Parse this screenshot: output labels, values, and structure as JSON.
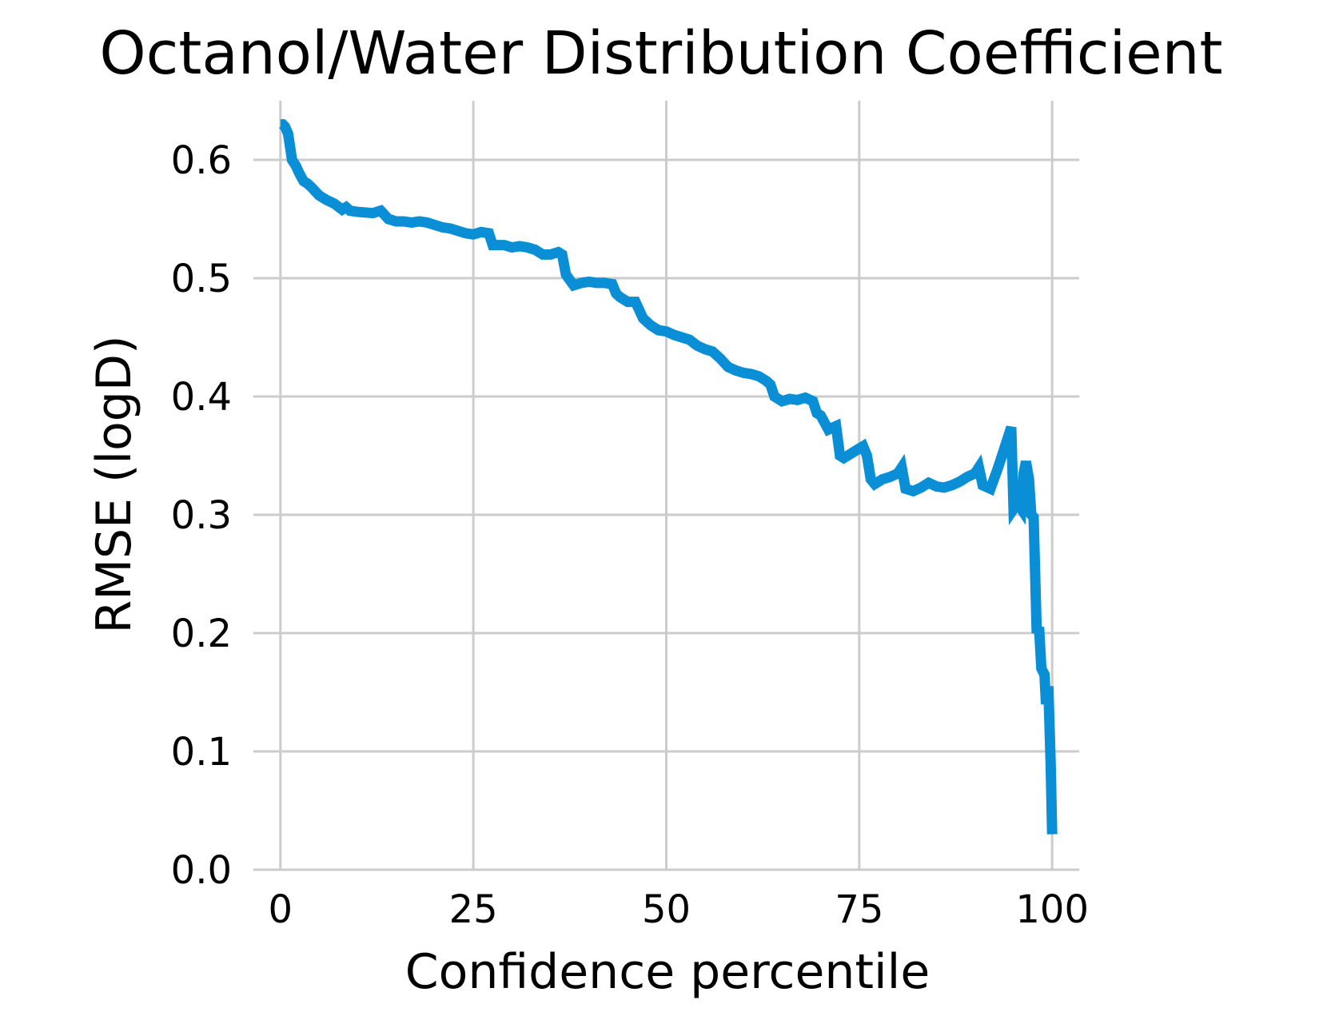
{
  "chart_data": {
    "type": "line",
    "title": "Octanol/Water Distribution Coefficient",
    "xlabel": "Confidence percentile",
    "ylabel": "RMSE (logD)",
    "xlim": [
      -3.5,
      103.5
    ],
    "ylim": [
      0,
      0.65
    ],
    "xticks": [
      0,
      25,
      50,
      75,
      100
    ],
    "xtick_labels": [
      "0",
      "25",
      "50",
      "75",
      "100"
    ],
    "yticks": [
      0.0,
      0.1,
      0.2,
      0.3,
      0.4,
      0.5,
      0.6
    ],
    "ytick_labels": [
      "0.0",
      "0.1",
      "0.2",
      "0.3",
      "0.4",
      "0.5",
      "0.6"
    ],
    "grid": true,
    "line_color": "#0a8fd6",
    "grid_color": "#cccccc",
    "series": [
      {
        "x": [
          0,
          0.3,
          0.6,
          1,
          1.5,
          2,
          2.5,
          3,
          3.5,
          4,
          5,
          6,
          7,
          8,
          8.5,
          9,
          10,
          12,
          13,
          14,
          15,
          16,
          17,
          18,
          19,
          20,
          21,
          22,
          23,
          24,
          25,
          26,
          27,
          27.5,
          28,
          29,
          30,
          31,
          32,
          33,
          34,
          35,
          36,
          36.5,
          37,
          38,
          39,
          40,
          41,
          42,
          43,
          43.5,
          44,
          45,
          46,
          47,
          48,
          49,
          50,
          51,
          52,
          53,
          54,
          55,
          56,
          57,
          58,
          59,
          60,
          61,
          62,
          63,
          63.5,
          64,
          65,
          66,
          67,
          68,
          69,
          69.5,
          70,
          71,
          72,
          72.5,
          73,
          74,
          75,
          75.5,
          76,
          76.5,
          77,
          78,
          79,
          80,
          80.5,
          81,
          82,
          83,
          84,
          85,
          86,
          87,
          88,
          89,
          90,
          90.5,
          91,
          92,
          93,
          94,
          94.7,
          95,
          95.5,
          96,
          96.3,
          96.6,
          97,
          97.3,
          97.6,
          98,
          98.3,
          98.6,
          99,
          99.2,
          99.5,
          99.8,
          100
        ],
        "y": [
          0.63,
          0.63,
          0.628,
          0.622,
          0.6,
          0.595,
          0.588,
          0.582,
          0.58,
          0.577,
          0.57,
          0.566,
          0.563,
          0.558,
          0.56,
          0.557,
          0.556,
          0.555,
          0.557,
          0.55,
          0.548,
          0.548,
          0.547,
          0.548,
          0.547,
          0.545,
          0.543,
          0.542,
          0.54,
          0.538,
          0.537,
          0.539,
          0.538,
          0.528,
          0.528,
          0.528,
          0.526,
          0.527,
          0.526,
          0.524,
          0.52,
          0.52,
          0.522,
          0.52,
          0.503,
          0.494,
          0.496,
          0.497,
          0.496,
          0.496,
          0.495,
          0.487,
          0.484,
          0.48,
          0.48,
          0.466,
          0.46,
          0.456,
          0.455,
          0.452,
          0.45,
          0.448,
          0.443,
          0.44,
          0.438,
          0.432,
          0.425,
          0.422,
          0.42,
          0.419,
          0.417,
          0.413,
          0.41,
          0.4,
          0.396,
          0.398,
          0.397,
          0.399,
          0.396,
          0.386,
          0.384,
          0.372,
          0.375,
          0.35,
          0.348,
          0.352,
          0.356,
          0.358,
          0.35,
          0.33,
          0.326,
          0.33,
          0.332,
          0.335,
          0.34,
          0.322,
          0.32,
          0.323,
          0.327,
          0.324,
          0.323,
          0.325,
          0.328,
          0.332,
          0.335,
          0.34,
          0.325,
          0.322,
          0.34,
          0.36,
          0.374,
          0.305,
          0.31,
          0.305,
          0.335,
          0.345,
          0.33,
          0.3,
          0.298,
          0.2,
          0.205,
          0.17,
          0.165,
          0.14,
          0.155,
          0.09,
          0.03
        ]
      }
    ]
  }
}
